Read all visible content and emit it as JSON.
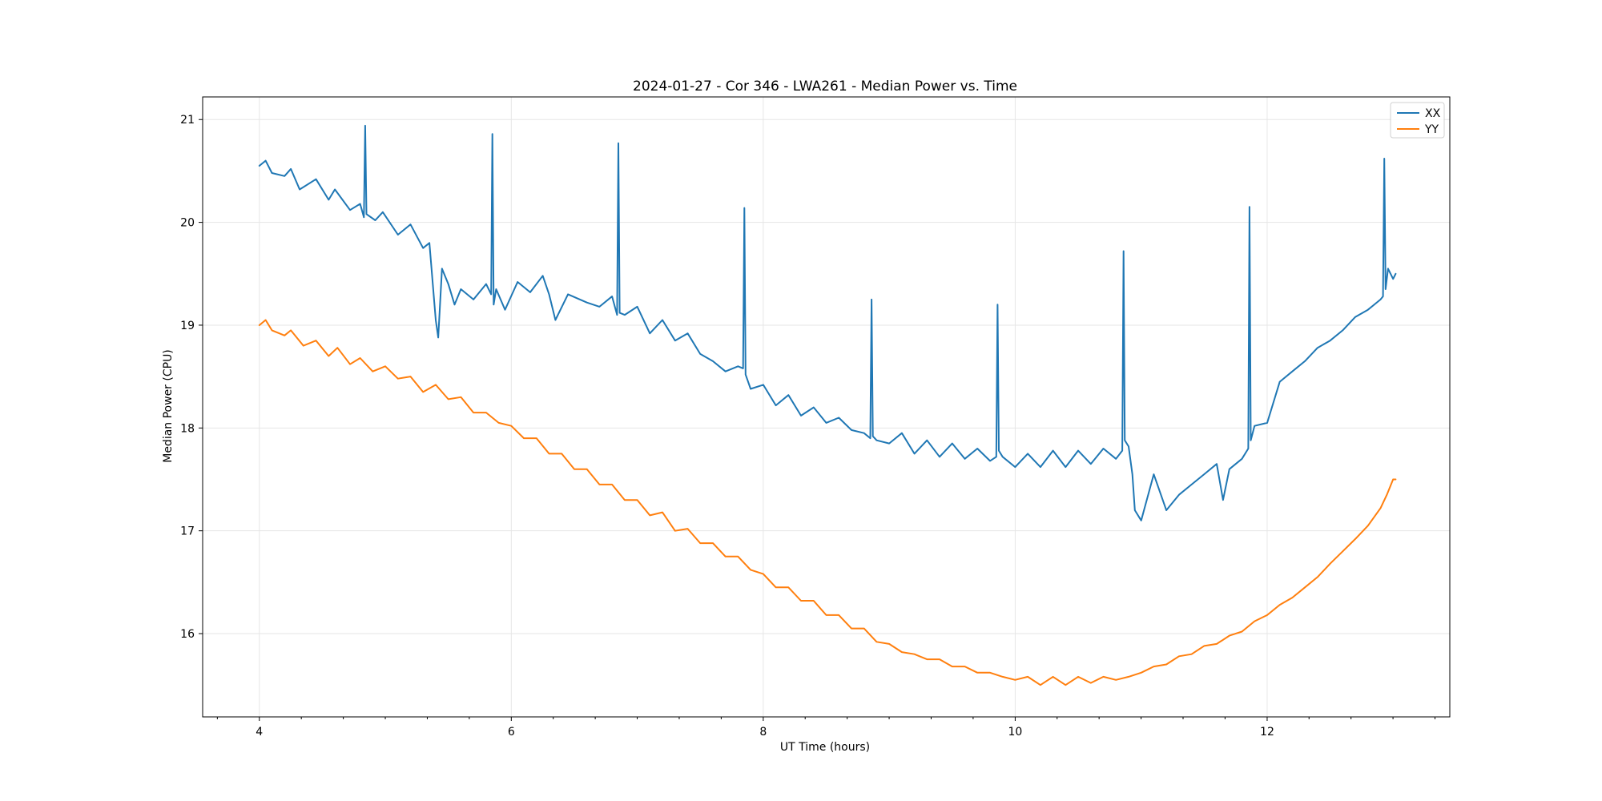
{
  "chart_data": {
    "type": "line",
    "title": "2024-01-27 - Cor 346 - LWA261 - Median Power vs. Time",
    "xlabel": "UT Time (hours)",
    "ylabel": "Median Power (CPU)",
    "xlim": [
      3.55,
      13.45
    ],
    "ylim": [
      15.19,
      21.22
    ],
    "x_ticks": [
      4,
      6,
      8,
      10,
      12
    ],
    "x_tick_labels": [
      "4",
      "6",
      "8",
      "10",
      "12"
    ],
    "x_minor_step": 0.3333,
    "y_ticks": [
      16,
      17,
      18,
      19,
      20,
      21
    ],
    "y_tick_labels": [
      "16",
      "17",
      "18",
      "19",
      "20",
      "21"
    ],
    "grid": true,
    "legend_position": "top-right",
    "series": [
      {
        "name": "XX",
        "color": "#1f77b4",
        "x": [
          4.0,
          4.05,
          4.1,
          4.2,
          4.25,
          4.32,
          4.45,
          4.55,
          4.6,
          4.72,
          4.8,
          4.83,
          4.84,
          4.85,
          4.92,
          4.98,
          5.1,
          5.2,
          5.3,
          5.35,
          5.4,
          5.42,
          5.45,
          5.5,
          5.55,
          5.6,
          5.7,
          5.8,
          5.84,
          5.85,
          5.86,
          5.88,
          5.95,
          6.05,
          6.15,
          6.25,
          6.3,
          6.35,
          6.45,
          6.6,
          6.7,
          6.8,
          6.84,
          6.85,
          6.86,
          6.9,
          7.0,
          7.1,
          7.2,
          7.3,
          7.4,
          7.5,
          7.6,
          7.7,
          7.8,
          7.84,
          7.85,
          7.86,
          7.9,
          8.0,
          8.1,
          8.2,
          8.3,
          8.4,
          8.5,
          8.6,
          8.7,
          8.8,
          8.85,
          8.86,
          8.87,
          8.9,
          9.0,
          9.1,
          9.2,
          9.3,
          9.4,
          9.5,
          9.6,
          9.7,
          9.8,
          9.85,
          9.86,
          9.87,
          9.9,
          10.0,
          10.1,
          10.2,
          10.3,
          10.4,
          10.5,
          10.6,
          10.7,
          10.8,
          10.85,
          10.86,
          10.87,
          10.9,
          10.93,
          10.95,
          11.0,
          11.1,
          11.2,
          11.3,
          11.4,
          11.5,
          11.6,
          11.65,
          11.7,
          11.8,
          11.85,
          11.86,
          11.87,
          11.9,
          12.0,
          12.1,
          12.2,
          12.3,
          12.4,
          12.5,
          12.6,
          12.7,
          12.8,
          12.9,
          12.92,
          12.93,
          12.94,
          12.96,
          13.0,
          13.02
        ],
        "y": [
          20.55,
          20.6,
          20.48,
          20.45,
          20.52,
          20.32,
          20.42,
          20.22,
          20.32,
          20.12,
          20.18,
          20.05,
          20.94,
          20.08,
          20.02,
          20.1,
          19.88,
          19.98,
          19.75,
          19.8,
          19.05,
          18.88,
          19.55,
          19.4,
          19.2,
          19.35,
          19.25,
          19.4,
          19.3,
          20.86,
          19.2,
          19.35,
          19.15,
          19.42,
          19.32,
          19.48,
          19.3,
          19.05,
          19.3,
          19.22,
          19.18,
          19.28,
          19.1,
          20.77,
          19.12,
          19.1,
          19.18,
          18.92,
          19.05,
          18.85,
          18.92,
          18.72,
          18.65,
          18.55,
          18.6,
          18.58,
          20.14,
          18.52,
          18.38,
          18.42,
          18.22,
          18.32,
          18.12,
          18.2,
          18.05,
          18.1,
          17.98,
          17.95,
          17.9,
          19.25,
          17.92,
          17.88,
          17.85,
          17.95,
          17.75,
          17.88,
          17.72,
          17.85,
          17.7,
          17.8,
          17.68,
          17.72,
          19.2,
          17.78,
          17.72,
          17.62,
          17.75,
          17.62,
          17.78,
          17.62,
          17.78,
          17.65,
          17.8,
          17.7,
          17.78,
          19.72,
          17.88,
          17.82,
          17.55,
          17.2,
          17.1,
          17.55,
          17.2,
          17.35,
          17.45,
          17.55,
          17.65,
          17.3,
          17.6,
          17.7,
          17.8,
          20.15,
          17.88,
          18.02,
          18.05,
          18.45,
          18.55,
          18.65,
          18.78,
          18.85,
          18.95,
          19.08,
          19.15,
          19.25,
          19.28,
          20.62,
          19.35,
          19.55,
          19.45,
          19.5
        ]
      },
      {
        "name": "YY",
        "color": "#ff7f0e",
        "x": [
          4.0,
          4.05,
          4.1,
          4.2,
          4.25,
          4.35,
          4.45,
          4.55,
          4.62,
          4.72,
          4.8,
          4.9,
          5.0,
          5.1,
          5.2,
          5.3,
          5.4,
          5.5,
          5.6,
          5.7,
          5.8,
          5.9,
          6.0,
          6.1,
          6.2,
          6.3,
          6.4,
          6.5,
          6.6,
          6.7,
          6.8,
          6.9,
          7.0,
          7.1,
          7.2,
          7.3,
          7.4,
          7.5,
          7.6,
          7.7,
          7.8,
          7.9,
          8.0,
          8.1,
          8.2,
          8.3,
          8.4,
          8.5,
          8.6,
          8.7,
          8.8,
          8.9,
          9.0,
          9.1,
          9.2,
          9.3,
          9.4,
          9.5,
          9.6,
          9.7,
          9.8,
          9.9,
          10.0,
          10.1,
          10.2,
          10.3,
          10.4,
          10.5,
          10.6,
          10.7,
          10.8,
          10.9,
          11.0,
          11.1,
          11.2,
          11.3,
          11.4,
          11.5,
          11.6,
          11.7,
          11.8,
          11.9,
          12.0,
          12.1,
          12.2,
          12.3,
          12.4,
          12.5,
          12.6,
          12.7,
          12.8,
          12.9,
          12.95,
          13.0,
          13.02
        ],
        "y": [
          19.0,
          19.05,
          18.95,
          18.9,
          18.95,
          18.8,
          18.85,
          18.7,
          18.78,
          18.62,
          18.68,
          18.55,
          18.6,
          18.48,
          18.5,
          18.35,
          18.42,
          18.28,
          18.3,
          18.15,
          18.15,
          18.05,
          18.02,
          17.9,
          17.9,
          17.75,
          17.75,
          17.6,
          17.6,
          17.45,
          17.45,
          17.3,
          17.3,
          17.15,
          17.18,
          17.0,
          17.02,
          16.88,
          16.88,
          16.75,
          16.75,
          16.62,
          16.58,
          16.45,
          16.45,
          16.32,
          16.32,
          16.18,
          16.18,
          16.05,
          16.05,
          15.92,
          15.9,
          15.82,
          15.8,
          15.75,
          15.75,
          15.68,
          15.68,
          15.62,
          15.62,
          15.58,
          15.55,
          15.58,
          15.5,
          15.58,
          15.5,
          15.58,
          15.52,
          15.58,
          15.55,
          15.58,
          15.62,
          15.68,
          15.7,
          15.78,
          15.8,
          15.88,
          15.9,
          15.98,
          16.02,
          16.12,
          16.18,
          16.28,
          16.35,
          16.45,
          16.55,
          16.68,
          16.8,
          16.92,
          17.05,
          17.22,
          17.35,
          17.5,
          17.5
        ]
      }
    ]
  }
}
